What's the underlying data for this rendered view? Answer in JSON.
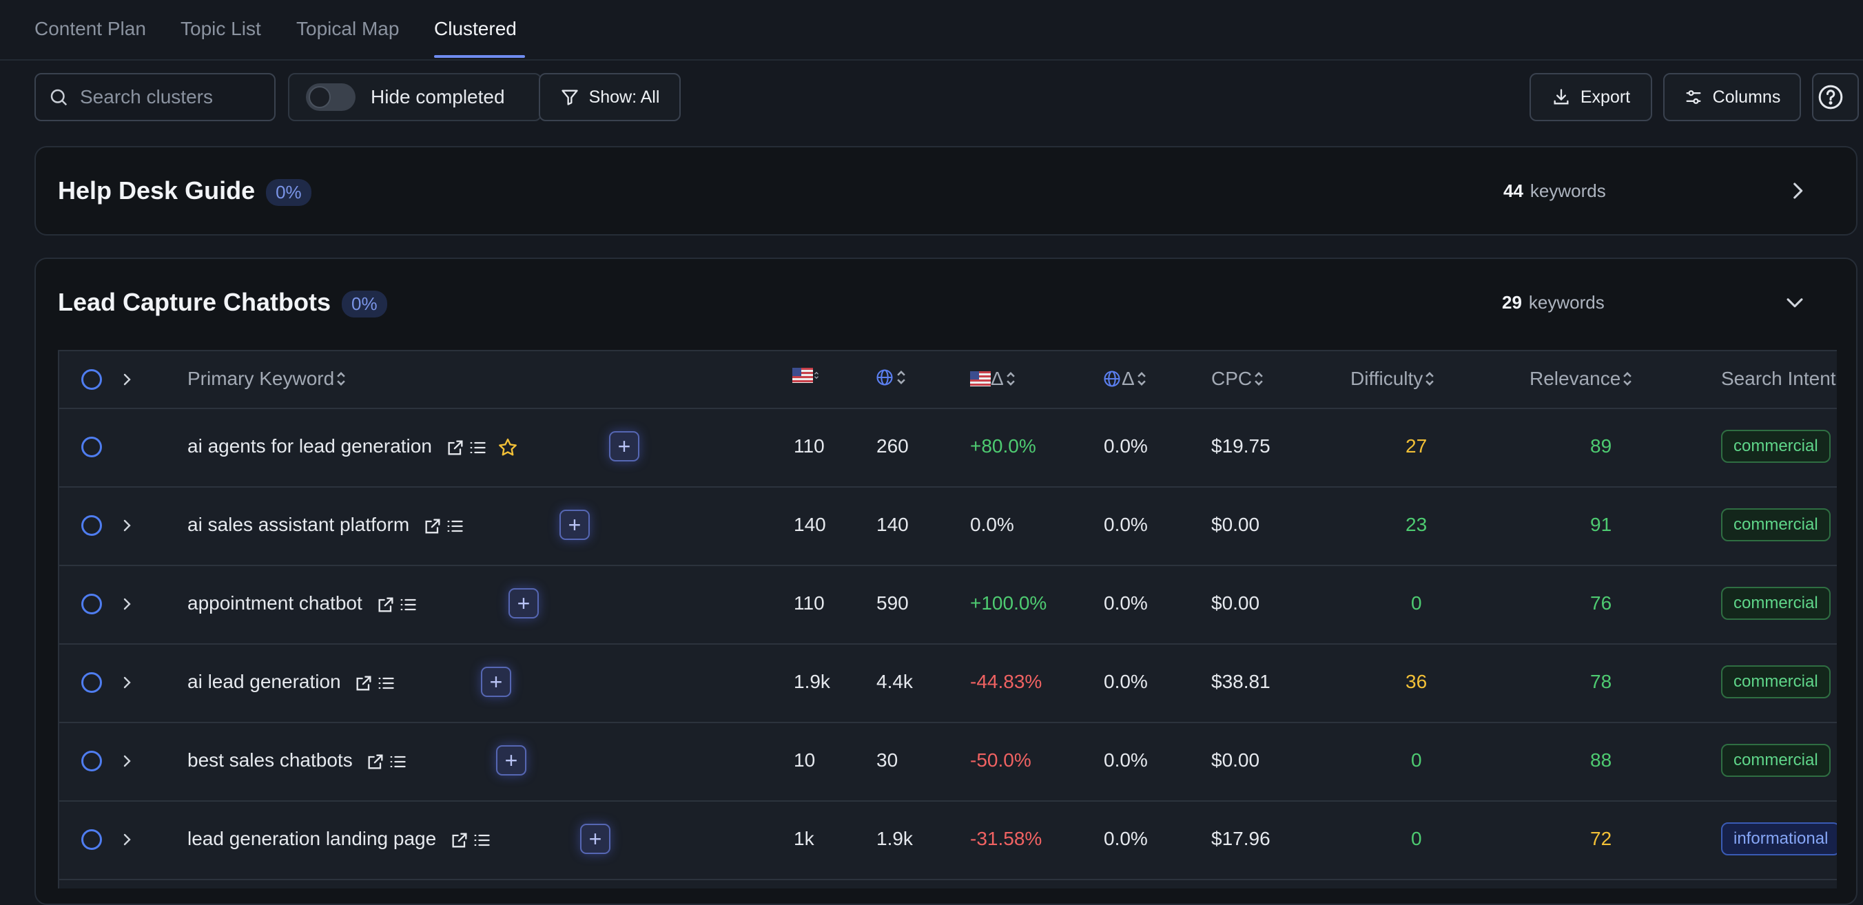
{
  "tabs": [
    {
      "label": "Content Plan",
      "active": false
    },
    {
      "label": "Topic List",
      "active": false
    },
    {
      "label": "Topical Map",
      "active": false
    },
    {
      "label": "Clustered",
      "active": true
    }
  ],
  "toolbar": {
    "search_placeholder": "Search clusters",
    "hide_completed_label": "Hide completed",
    "hide_completed_on": false,
    "show_filter_label": "Show: All",
    "export_label": "Export",
    "columns_label": "Columns"
  },
  "clusters": [
    {
      "title": "Help Desk Guide",
      "percent": "0%",
      "keyword_count": "44",
      "keyword_suffix": "keywords",
      "expanded": false
    },
    {
      "title": "Lead Capture Chatbots",
      "percent": "0%",
      "keyword_count": "29",
      "keyword_suffix": "keywords",
      "expanded": true
    }
  ],
  "table": {
    "headers": {
      "primary_keyword": "Primary Keyword",
      "delta": "Δ",
      "cpc": "CPC",
      "difficulty": "Difficulty",
      "relevance": "Relevance",
      "search_intent": "Search Intent"
    },
    "rows": [
      {
        "keyword": "ai agents for lead generation",
        "starred": true,
        "expandable": false,
        "us": "110",
        "global": "260",
        "us_delta": "+80.0%",
        "global_delta": "0.0%",
        "cpc": "$19.75",
        "difficulty": "27",
        "relevance": "89",
        "intent": "commercial"
      },
      {
        "keyword": "ai sales assistant platform",
        "starred": false,
        "expandable": true,
        "us": "140",
        "global": "140",
        "us_delta": "0.0%",
        "global_delta": "0.0%",
        "cpc": "$0.00",
        "difficulty": "23",
        "relevance": "91",
        "intent": "commercial"
      },
      {
        "keyword": "appointment chatbot",
        "starred": false,
        "expandable": true,
        "us": "110",
        "global": "590",
        "us_delta": "+100.0%",
        "global_delta": "0.0%",
        "cpc": "$0.00",
        "difficulty": "0",
        "relevance": "76",
        "intent": "commercial"
      },
      {
        "keyword": "ai lead generation",
        "starred": false,
        "expandable": true,
        "us": "1.9k",
        "global": "4.4k",
        "us_delta": "-44.83%",
        "global_delta": "0.0%",
        "cpc": "$38.81",
        "difficulty": "36",
        "relevance": "78",
        "intent": "commercial"
      },
      {
        "keyword": "best sales chatbots",
        "starred": false,
        "expandable": true,
        "us": "10",
        "global": "30",
        "us_delta": "-50.0%",
        "global_delta": "0.0%",
        "cpc": "$0.00",
        "difficulty": "0",
        "relevance": "88",
        "intent": "commercial"
      },
      {
        "keyword": "lead generation landing page",
        "starred": false,
        "expandable": true,
        "us": "1k",
        "global": "1.9k",
        "us_delta": "-31.58%",
        "global_delta": "0.0%",
        "cpc": "$17.96",
        "difficulty": "0",
        "relevance": "72",
        "intent": "informational"
      }
    ]
  },
  "colors": {
    "accent": "#6f8cf0",
    "positive": "#4ecb71",
    "negative": "#f06262",
    "warning": "#f2c037"
  }
}
